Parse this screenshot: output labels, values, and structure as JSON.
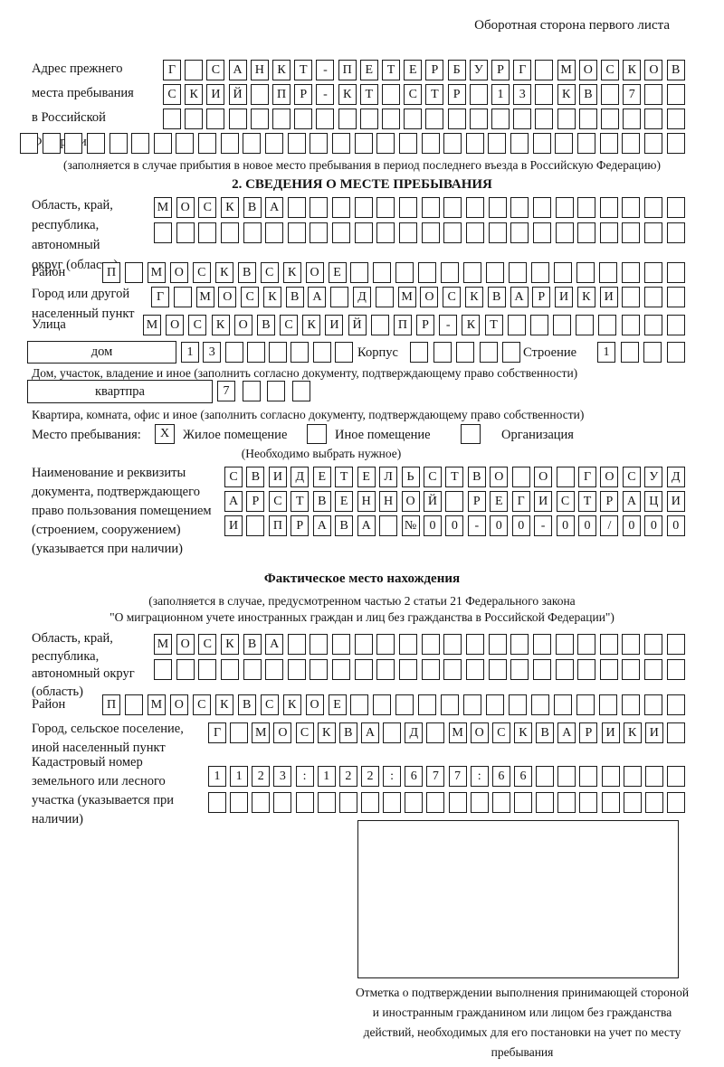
{
  "header_note": "Оборотная сторона первого листа",
  "prev_address": {
    "label": "Адрес прежнего места пребывания в Российской Федерации",
    "rows": [
      [
        "Г",
        "",
        "С",
        "А",
        "Н",
        "К",
        "Т",
        "-",
        "П",
        "Е",
        "Т",
        "Е",
        "Р",
        "Б",
        "У",
        "Р",
        "Г",
        "",
        "М",
        "О",
        "С",
        "К",
        "О",
        "В"
      ],
      [
        "С",
        "К",
        "И",
        "Й",
        "",
        "П",
        "Р",
        "-",
        "К",
        "Т",
        "",
        "С",
        "Т",
        "Р",
        "",
        "1",
        "3",
        "",
        "К",
        "В",
        "",
        "7",
        "",
        ""
      ],
      [
        "",
        "",
        "",
        "",
        "",
        "",
        "",
        "",
        "",
        "",
        "",
        "",
        "",
        "",
        "",
        "",
        "",
        "",
        "",
        "",
        "",
        "",
        "",
        ""
      ],
      [
        "",
        "",
        "",
        "",
        "",
        "",
        "",
        "",
        "",
        "",
        "",
        "",
        "",
        "",
        "",
        "",
        "",
        "",
        "",
        "",
        "",
        "",
        "",
        "",
        "",
        "",
        "",
        "",
        "",
        ""
      ]
    ],
    "footnote": "(заполняется в случае прибытия в новое место пребывания в период последнего въезда в Российскую Федерацию)"
  },
  "place": {
    "title": "2. СВЕДЕНИЯ О МЕСТЕ ПРЕБЫВАНИЯ",
    "region": {
      "label": "Область, край, республика, автономный округ (область)",
      "rows": [
        [
          "М",
          "О",
          "С",
          "К",
          "В",
          "А",
          "",
          "",
          "",
          "",
          "",
          "",
          "",
          "",
          "",
          "",
          "",
          "",
          "",
          "",
          "",
          "",
          "",
          ""
        ],
        [
          "",
          "",
          "",
          "",
          "",
          "",
          "",
          "",
          "",
          "",
          "",
          "",
          "",
          "",
          "",
          "",
          "",
          "",
          "",
          "",
          "",
          "",
          "",
          ""
        ]
      ]
    },
    "district": {
      "label": "Район",
      "cells": [
        "П",
        "",
        "М",
        "О",
        "С",
        "К",
        "В",
        "С",
        "К",
        "О",
        "Е",
        "",
        "",
        "",
        "",
        "",
        "",
        "",
        "",
        "",
        "",
        "",
        "",
        "",
        "",
        ""
      ]
    },
    "city": {
      "label": "Город или другой населенный пункт",
      "cells": [
        "Г",
        "",
        "М",
        "О",
        "С",
        "К",
        "В",
        "А",
        "",
        "Д",
        "",
        "М",
        "О",
        "С",
        "К",
        "В",
        "А",
        "Р",
        "И",
        "К",
        "И",
        "",
        "",
        ""
      ]
    },
    "street": {
      "label": "Улица",
      "cells": [
        "М",
        "О",
        "С",
        "К",
        "О",
        "В",
        "С",
        "К",
        "И",
        "Й",
        "",
        "П",
        "Р",
        "-",
        "К",
        "Т",
        "",
        "",
        "",
        "",
        "",
        "",
        "",
        ""
      ]
    },
    "house": {
      "box_label": "дом",
      "cells": [
        "1",
        "3",
        "",
        "",
        "",
        "",
        "",
        ""
      ],
      "korpus_label": "Корпус",
      "korpus_cells": [
        "",
        "",
        "",
        "",
        ""
      ],
      "stroenie_label": "Строение",
      "stroenie_cells": [
        "1",
        "",
        "",
        ""
      ],
      "note": "Дом, участок, владение и иное (заполнить согласно документу, подтверждающему право собственности)"
    },
    "apartment": {
      "box_label": "квартпра",
      "cells": [
        "7",
        "",
        "",
        ""
      ],
      "note": "Квартира, комната, офис и иное (заполнить согласно документу, подтверждающему право собственности)"
    },
    "stay": {
      "label": "Место пребывания:",
      "options": [
        {
          "label": "Жилое помещение",
          "mark": "X"
        },
        {
          "label": "Иное помещение",
          "mark": ""
        },
        {
          "label": "Организация",
          "mark": ""
        }
      ],
      "note": "(Необходимо выбрать нужное)"
    },
    "document": {
      "label": "Наименование и реквизиты документа, подтверждающего право пользования помещением (строением, сооружением) (указывается при наличии)",
      "rows": [
        [
          "С",
          "В",
          "И",
          "Д",
          "Е",
          "Т",
          "Е",
          "Л",
          "Ь",
          "С",
          "Т",
          "В",
          "О",
          "",
          "О",
          "",
          "Г",
          "О",
          "С",
          "У",
          "Д"
        ],
        [
          "А",
          "Р",
          "С",
          "Т",
          "В",
          "Е",
          "Н",
          "Н",
          "О",
          "Й",
          "",
          "Р",
          "Е",
          "Г",
          "И",
          "С",
          "Т",
          "Р",
          "А",
          "Ц",
          "И"
        ],
        [
          "И",
          "",
          "П",
          "Р",
          "А",
          "В",
          "А",
          "",
          "№",
          "0",
          "0",
          "-",
          "0",
          "0",
          "-",
          "0",
          "0",
          "/",
          "0",
          "0",
          "0"
        ]
      ]
    }
  },
  "actual": {
    "title": "Фактическое место нахождения",
    "note1": "(заполняется в случае, предусмотренном частью 2 статьи 21 Федерального закона",
    "note2": "\"О миграционном учете иностранных граждан и лиц без гражданства в Российской Федерации\")",
    "region": {
      "label": "Область, край, республика, автономный округ (область)",
      "rows": [
        [
          "М",
          "О",
          "С",
          "К",
          "В",
          "А",
          "",
          "",
          "",
          "",
          "",
          "",
          "",
          "",
          "",
          "",
          "",
          "",
          "",
          "",
          "",
          "",
          "",
          ""
        ],
        [
          "",
          "",
          "",
          "",
          "",
          "",
          "",
          "",
          "",
          "",
          "",
          "",
          "",
          "",
          "",
          "",
          "",
          "",
          "",
          "",
          "",
          "",
          "",
          ""
        ]
      ]
    },
    "district": {
      "label": "Район",
      "cells": [
        "П",
        "",
        "М",
        "О",
        "С",
        "К",
        "В",
        "С",
        "К",
        "О",
        "Е",
        "",
        "",
        "",
        "",
        "",
        "",
        "",
        "",
        "",
        "",
        "",
        "",
        "",
        "",
        ""
      ]
    },
    "city": {
      "label": "Город, сельское поселение, иной населенный пункт",
      "cells": [
        "Г",
        "",
        "М",
        "О",
        "С",
        "К",
        "В",
        "А",
        "",
        "Д",
        "",
        "М",
        "О",
        "С",
        "К",
        "В",
        "А",
        "Р",
        "И",
        "К",
        "И",
        ""
      ]
    },
    "cadastre": {
      "label": "Кадастровый номер земельного или лесного участка (указывается при наличии)",
      "rows": [
        [
          "1",
          "1",
          "2",
          "3",
          ":",
          "1",
          "2",
          "2",
          ":",
          "6",
          "7",
          "7",
          ":",
          "6",
          "6",
          "",
          "",
          "",
          "",
          "",
          "",
          ""
        ],
        [
          "",
          "",
          "",
          "",
          "",
          "",
          "",
          "",
          "",
          "",
          "",
          "",
          "",
          "",
          "",
          "",
          "",
          "",
          "",
          "",
          "",
          ""
        ]
      ]
    },
    "stamp_note": "Отметка о подтверждении выполнения принимающей стороной и иностранным гражданином или лицом без гражданства действий, необходимых для его постановки на учет по месту пребывания"
  }
}
